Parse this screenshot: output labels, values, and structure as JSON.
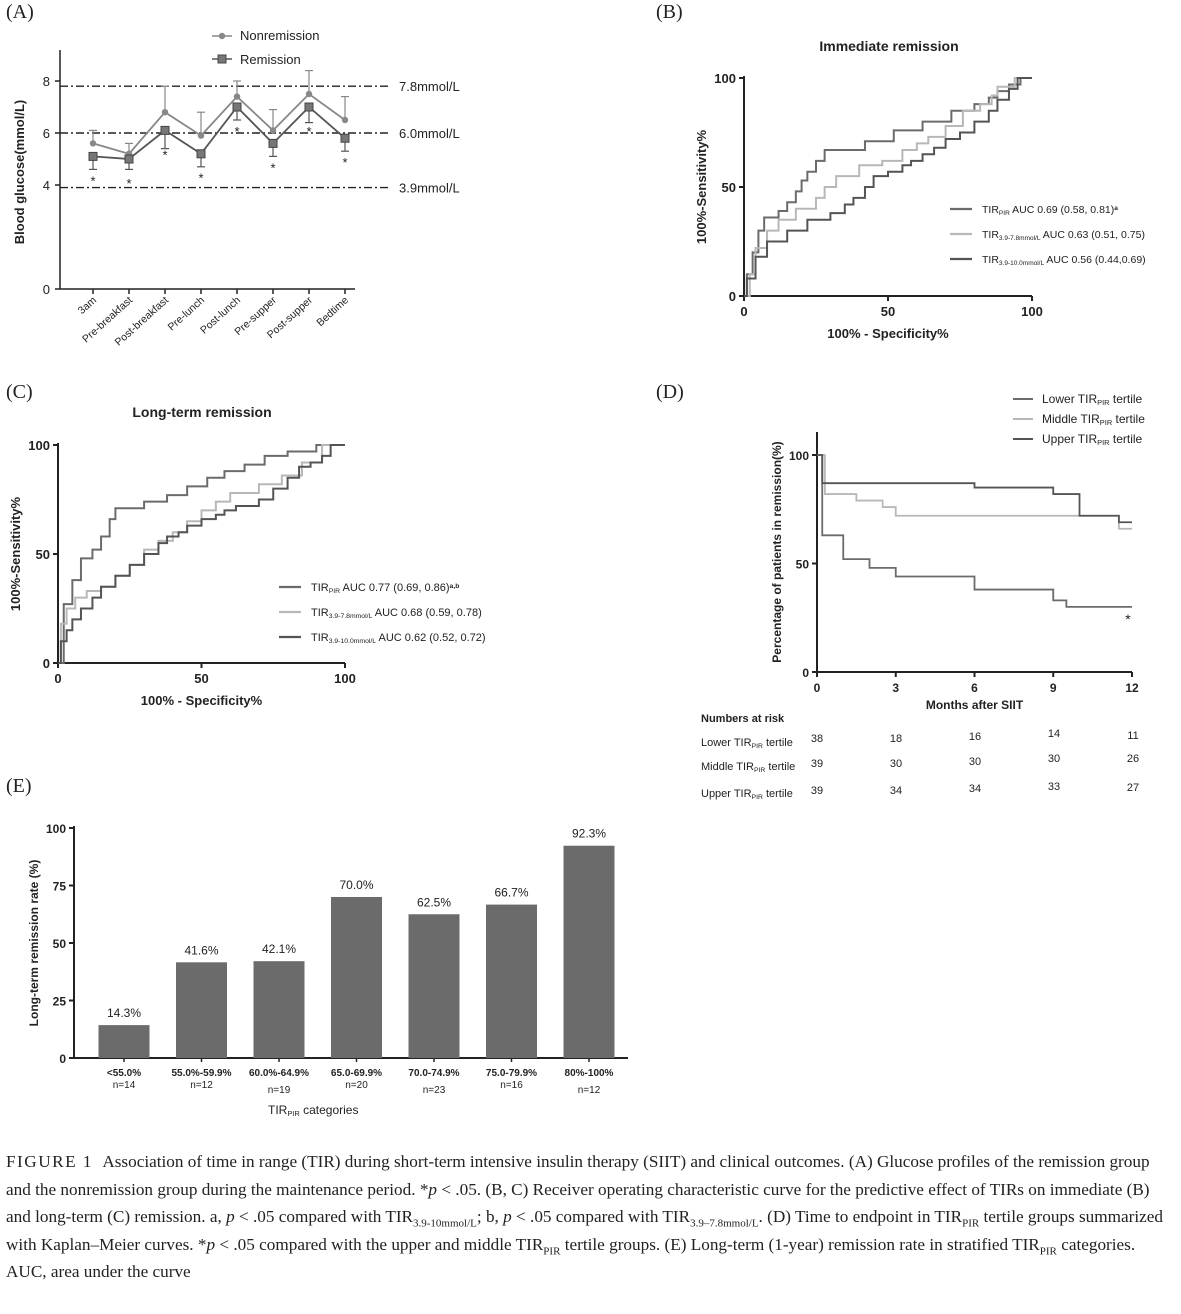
{
  "panels": {
    "a": {
      "letter": "(A)",
      "legend": [
        "Nonremission",
        "Remission"
      ],
      "ylabel": "Blood glucose(mmol/L)",
      "yticks": [
        "0",
        "4",
        "6",
        "8"
      ],
      "xticks": [
        "3am",
        "Pre-breakfast",
        "Post-breakfast",
        "Pre-lunch",
        "Post-lunch",
        "Pre-supper",
        "Post-supper",
        "Bedtime"
      ],
      "ref_lines": [
        "7.8mmol/L",
        "6.0mmol/L",
        "3.9mmol/L"
      ],
      "star": "*"
    },
    "b": {
      "letter": "(B)",
      "title": "Immediate remission",
      "ylabel": "100%-Sensitivity%",
      "xlabel": "100% - Specificity%",
      "ticks": [
        "0",
        "50",
        "100"
      ],
      "legend": [
        {
          "base": "TIR",
          "sub": "PIR",
          "text": " AUC 0.69 (0.58, 0.81)",
          "sup": "a"
        },
        {
          "base": "TIR",
          "sub": "3.9-7.8mmol/L",
          "text": " AUC 0.63 (0.51, 0.75)",
          "sup": ""
        },
        {
          "base": "TIR",
          "sub": "3.9-10.0mmol/L",
          "text": "  AUC 0.56 (0.44,0.69)",
          "sup": ""
        }
      ]
    },
    "c": {
      "letter": "(C)",
      "title": "Long-term remission",
      "ylabel": "100%-Sensitivity%",
      "xlabel": "100% - Specificity%",
      "ticks": [
        "0",
        "50",
        "100"
      ],
      "legend": [
        {
          "base": "TIR",
          "sub": "PIR",
          "text": " AUC 0.77 (0.69, 0.86)",
          "sup": "a,b"
        },
        {
          "base": "TIR",
          "sub": "3.9-7.8mmol/L",
          "text": " AUC 0.68 (0.59, 0.78)",
          "sup": ""
        },
        {
          "base": "TIR",
          "sub": "3.9-10.0mmol/L",
          "text": "  AUC 0.62  (0.52, 0.72)",
          "sup": ""
        }
      ]
    },
    "d": {
      "letter": "(D)",
      "ylabel": "Percentage of patients in remission(%)",
      "xlabel": "Months after SIIT",
      "yticks": [
        "0",
        "50",
        "100"
      ],
      "xticks": [
        "0",
        "3",
        "6",
        "9",
        "12"
      ],
      "legend": [
        {
          "pre": "Lower TIR",
          "sub": "PIR",
          "post": " tertile"
        },
        {
          "pre": "Middle TIR",
          "sub": "PIR",
          "post": " tertile"
        },
        {
          "pre": "Upper TIR",
          "sub": "PIR",
          "post": " tertile"
        }
      ],
      "risk_title": "Numbers at risk",
      "risk_rows": [
        {
          "pre": "Lower TIR",
          "sub": "PIR",
          "post": " tertile",
          "values": [
            "38",
            "18",
            "16",
            "14",
            "11"
          ]
        },
        {
          "pre": "Middle TIR",
          "sub": "PIR",
          "post": " tertile",
          "values": [
            "39",
            "30",
            "30",
            "30",
            "26"
          ]
        },
        {
          "pre": "Upper TIR",
          "sub": "PIR",
          "post": " tertile",
          "values": [
            "39",
            "34",
            "34",
            "33",
            "27"
          ]
        }
      ],
      "star": "*"
    },
    "e": {
      "letter": "(E)",
      "ylabel": "Long-term remission rate (%)",
      "xlabel_base": "TIR",
      "xlabel_sub": "PIR",
      "xlabel_post": " categories",
      "yticks": [
        "0",
        "25",
        "50",
        "75",
        "100"
      ]
    }
  },
  "caption": {
    "fig": "FIGURE 1",
    "parts": [
      {
        "t": "Association of time in range (TIR) during short-term intensive insulin therapy (SIIT) and clinical outcomes. (A) Glucose profiles of the remission group and the nonremission group during the maintenance period. *"
      },
      {
        "t": "p",
        "i": true
      },
      {
        "t": " < .05. (B, C) Receiver operating characteristic curve for the predictive effect of TIRs on immediate (B) and long-term (C) remission. a, "
      },
      {
        "t": "p",
        "i": true
      },
      {
        "t": " < .05 compared with TIR"
      },
      {
        "t": "3.9-10mmol/L",
        "s": true
      },
      {
        "t": "; b, "
      },
      {
        "t": "p",
        "i": true
      },
      {
        "t": " < .05 compared with TIR"
      },
      {
        "t": "3.9–7.8mmol/L",
        "s": true
      },
      {
        "t": ". (D) Time to endpoint in TIR"
      },
      {
        "t": "PIR",
        "s": true
      },
      {
        "t": " tertile groups summarized with Kaplan–Meier curves. *"
      },
      {
        "t": "p",
        "i": true
      },
      {
        "t": " < .05 compared with the upper and middle TIR"
      },
      {
        "t": "PIR",
        "s": true
      },
      {
        "t": " tertile groups. (E) Long-term (1-year) remission rate in stratified TIR"
      },
      {
        "t": "PIR",
        "s": true
      },
      {
        "t": " categories. AUC, area under the curve"
      }
    ]
  },
  "chart_data": [
    {
      "panel": "A",
      "type": "line",
      "categories": [
        "3am",
        "Pre-breakfast",
        "Post-breakfast",
        "Pre-lunch",
        "Post-lunch",
        "Pre-supper",
        "Post-supper",
        "Bedtime"
      ],
      "ylim": [
        0,
        9
      ],
      "ylabel": "Blood glucose(mmol/L)",
      "series": [
        {
          "name": "Nonremission",
          "values": [
            5.6,
            5.2,
            6.8,
            5.9,
            7.4,
            6.1,
            7.5,
            6.5
          ],
          "err": [
            0.5,
            0.4,
            1.0,
            0.9,
            0.6,
            0.8,
            0.9,
            0.9
          ]
        },
        {
          "name": "Remission",
          "values": [
            5.1,
            5.0,
            6.1,
            5.2,
            7.0,
            5.6,
            7.0,
            5.8
          ],
          "err": [
            0.5,
            0.4,
            0.7,
            0.5,
            0.5,
            0.5,
            0.6,
            0.5
          ]
        }
      ],
      "significant": [
        true,
        true,
        true,
        true,
        true,
        true,
        true,
        true
      ],
      "reference_lines": [
        {
          "y": 7.8,
          "label": "7.8mmol/L"
        },
        {
          "y": 6.0,
          "label": "6.0mmol/L"
        },
        {
          "y": 3.9,
          "label": "3.9mmol/L"
        }
      ]
    },
    {
      "panel": "B",
      "type": "line",
      "title": "Immediate remission",
      "xlabel": "100% - Specificity%",
      "ylabel": "100%-Sensitivity%",
      "xlim": [
        0,
        100
      ],
      "ylim": [
        0,
        100
      ],
      "series": [
        {
          "name": "TIR PIR AUC 0.69 (0.58, 0.81)",
          "color": "#6b6b6b",
          "x": [
            0,
            1,
            1,
            3,
            3,
            5,
            5,
            7,
            7,
            12,
            12,
            15,
            15,
            18,
            18,
            20,
            20,
            22,
            22,
            25,
            25,
            28,
            28,
            42,
            42,
            52,
            52,
            62,
            62,
            72,
            72,
            80,
            80,
            85,
            85,
            88,
            88,
            92,
            92,
            96,
            96,
            100
          ],
          "y": [
            0,
            0,
            10,
            10,
            20,
            20,
            30,
            30,
            36,
            36,
            39,
            39,
            43,
            43,
            48,
            48,
            53,
            53,
            57,
            57,
            62,
            62,
            67,
            67,
            71,
            71,
            76,
            76,
            80,
            80,
            85,
            85,
            88,
            88,
            91,
            91,
            94,
            94,
            97,
            97,
            100,
            100
          ]
        },
        {
          "name": "TIR 3.9-7.8mmol/L AUC 0.63 (0.51, 0.75)",
          "color": "#b8b8b8",
          "x": [
            0,
            2,
            2,
            4,
            4,
            8,
            8,
            12,
            12,
            18,
            18,
            25,
            25,
            28,
            28,
            32,
            32,
            40,
            40,
            48,
            48,
            55,
            55,
            60,
            60,
            64,
            64,
            70,
            70,
            76,
            76,
            82,
            82,
            86,
            86,
            88,
            88,
            94,
            94,
            100
          ],
          "y": [
            0,
            0,
            10,
            10,
            22,
            22,
            30,
            30,
            35,
            35,
            40,
            40,
            45,
            45,
            50,
            50,
            55,
            55,
            60,
            60,
            62,
            62,
            67,
            67,
            70,
            70,
            73,
            73,
            78,
            78,
            85,
            85,
            88,
            88,
            92,
            92,
            96,
            96,
            100,
            100
          ]
        },
        {
          "name": "TIR 3.9-10.0mmol/L AUC 0.56 (0.44,0.69)",
          "color": "#545454",
          "x": [
            0,
            1,
            1,
            4,
            4,
            8,
            8,
            15,
            15,
            22,
            22,
            30,
            30,
            35,
            35,
            38,
            38,
            42,
            42,
            45,
            45,
            50,
            50,
            55,
            55,
            58,
            58,
            62,
            62,
            66,
            66,
            70,
            70,
            75,
            75,
            80,
            80,
            85,
            85,
            88,
            88,
            92,
            92,
            95,
            95,
            100
          ],
          "y": [
            0,
            0,
            8,
            8,
            18,
            18,
            25,
            25,
            30,
            30,
            35,
            35,
            38,
            38,
            42,
            42,
            45,
            45,
            50,
            50,
            55,
            55,
            57,
            57,
            60,
            60,
            62,
            62,
            65,
            65,
            68,
            68,
            72,
            72,
            75,
            75,
            80,
            80,
            85,
            85,
            90,
            90,
            95,
            95,
            100,
            100
          ]
        }
      ]
    },
    {
      "panel": "C",
      "type": "line",
      "title": "Long-term remission",
      "xlabel": "100% - Specificity%",
      "ylabel": "100%-Sensitivity%",
      "xlim": [
        0,
        100
      ],
      "ylim": [
        0,
        100
      ],
      "series": [
        {
          "name": "TIR PIR AUC 0.77 (0.69, 0.86)",
          "color": "#6b6b6b",
          "x": [
            0,
            2,
            2,
            5,
            5,
            8,
            8,
            12,
            12,
            15,
            15,
            18,
            18,
            20,
            20,
            30,
            30,
            38,
            38,
            45,
            45,
            52,
            52,
            58,
            58,
            65,
            65,
            72,
            72,
            80,
            80,
            90,
            90,
            100
          ],
          "y": [
            0,
            0,
            27,
            27,
            38,
            38,
            48,
            48,
            52,
            52,
            58,
            58,
            66,
            66,
            71,
            71,
            74,
            74,
            77,
            77,
            81,
            81,
            85,
            85,
            88,
            88,
            91,
            91,
            95,
            95,
            97,
            97,
            100,
            100
          ]
        },
        {
          "name": "TIR 3.9-7.8mmol/L AUC 0.68 (0.59, 0.78)",
          "color": "#b8b8b8",
          "x": [
            0,
            1,
            1,
            3,
            3,
            6,
            6,
            10,
            10,
            15,
            15,
            20,
            20,
            25,
            25,
            30,
            30,
            35,
            35,
            40,
            40,
            45,
            45,
            50,
            50,
            55,
            55,
            60,
            60,
            70,
            70,
            78,
            78,
            85,
            85,
            92,
            92,
            100
          ],
          "y": [
            0,
            0,
            18,
            18,
            25,
            25,
            30,
            30,
            33,
            33,
            35,
            35,
            40,
            40,
            45,
            45,
            52,
            52,
            56,
            56,
            60,
            60,
            65,
            65,
            70,
            70,
            74,
            74,
            78,
            78,
            82,
            82,
            86,
            86,
            92,
            92,
            100,
            100
          ]
        },
        {
          "name": "TIR 3.9-10.0mmol/L AUC 0.62 (0.52, 0.72)",
          "color": "#545454",
          "x": [
            0,
            1,
            1,
            3,
            3,
            5,
            5,
            8,
            8,
            12,
            12,
            15,
            15,
            20,
            20,
            25,
            25,
            30,
            30,
            35,
            35,
            38,
            38,
            42,
            42,
            45,
            45,
            50,
            50,
            55,
            55,
            58,
            58,
            62,
            62,
            70,
            70,
            75,
            75,
            80,
            80,
            84,
            84,
            88,
            88,
            92,
            92,
            95,
            95,
            100
          ],
          "y": [
            0,
            0,
            10,
            10,
            15,
            15,
            20,
            20,
            25,
            25,
            30,
            30,
            35,
            35,
            40,
            40,
            45,
            45,
            50,
            50,
            55,
            55,
            58,
            58,
            60,
            60,
            63,
            63,
            66,
            66,
            68,
            68,
            70,
            70,
            72,
            72,
            75,
            75,
            80,
            80,
            85,
            85,
            90,
            90,
            92,
            92,
            95,
            95,
            100,
            100
          ]
        }
      ]
    },
    {
      "panel": "D",
      "type": "line",
      "xlabel": "Months after SIIT",
      "ylabel": "Percentage of patients in remission(%)",
      "xlim": [
        0,
        12
      ],
      "ylim": [
        0,
        100
      ],
      "series": [
        {
          "name": "Lower TIR PIR tertile",
          "color": "#6b6b6b",
          "x": [
            0,
            0.2,
            0.2,
            1,
            1,
            2,
            2,
            3,
            3,
            6,
            6,
            9,
            9,
            9.5,
            9.5,
            12
          ],
          "y": [
            100,
            100,
            63,
            63,
            52,
            52,
            48,
            48,
            44,
            44,
            38,
            38,
            33,
            33,
            30,
            30
          ]
        },
        {
          "name": "Middle TIR PIR tertile",
          "color": "#b8b8b8",
          "x": [
            0,
            0.3,
            0.3,
            1.5,
            1.5,
            2.5,
            2.5,
            3,
            3,
            6,
            6,
            9,
            9,
            11.5,
            11.5,
            12
          ],
          "y": [
            100,
            100,
            82,
            82,
            79,
            79,
            76,
            76,
            72,
            72,
            72,
            72,
            72,
            72,
            66,
            66
          ]
        },
        {
          "name": "Upper TIR PIR tertile",
          "color": "#545454",
          "x": [
            0,
            0.2,
            0.2,
            6,
            6,
            9,
            9,
            10,
            10,
            11.5,
            11.5,
            12
          ],
          "y": [
            100,
            100,
            87,
            87,
            85,
            85,
            82,
            82,
            72,
            72,
            69,
            69
          ]
        }
      ]
    },
    {
      "panel": "E",
      "type": "bar",
      "categories": [
        "<55.0%",
        "55.0%-59.9%",
        "60.0%-64.9%",
        "65.0-69.9%",
        "70.0-74.9%",
        "75.0-79.9%",
        "80%-100%"
      ],
      "n": [
        "n=14",
        "n=12",
        "n=19",
        "n=20",
        "n=23",
        "n=16",
        "n=12"
      ],
      "values": [
        14.3,
        41.6,
        42.1,
        70.0,
        62.5,
        66.7,
        92.3
      ],
      "labels": [
        "14.3%",
        "41.6%",
        "42.1%",
        "70.0%",
        "62.5%",
        "66.7%",
        "92.3%"
      ],
      "ylim": [
        0,
        100
      ],
      "color": "#6b6b6b"
    }
  ]
}
